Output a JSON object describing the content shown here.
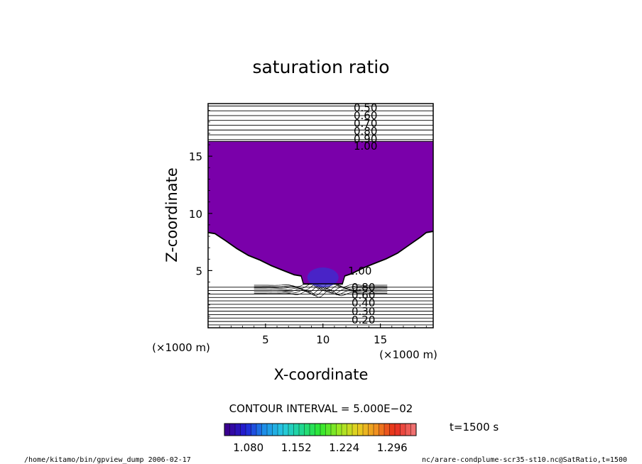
{
  "chart_data": {
    "type": "contour",
    "title": "saturation ratio",
    "xlabel": "X-coordinate",
    "ylabel": "Z-coordinate",
    "x_unit": "(×1000 m)",
    "z_unit": "(×1000 m)",
    "xlim": [
      0,
      19.6
    ],
    "ylim": [
      0,
      19.6
    ],
    "x_ticks": [
      5,
      10,
      15
    ],
    "y_ticks": [
      5,
      10,
      15
    ],
    "fill_threshold": 1.0,
    "fill_color": "#7a00aa",
    "core_color": "#3a2fd0",
    "upper_contour_labels": [
      "0.50",
      "0.60",
      "0.70",
      "0.80",
      "0.90",
      "1.00"
    ],
    "lower_contour_labels": [
      "1.00",
      "0.80",
      "0.60",
      "0.40",
      "0.30",
      "0.20"
    ],
    "plume_boundary": [
      [
        0.0,
        8.3
      ],
      [
        0.6,
        8.2
      ],
      [
        1.5,
        7.6
      ],
      [
        2.5,
        6.9
      ],
      [
        3.5,
        6.3
      ],
      [
        4.5,
        5.9
      ],
      [
        5.5,
        5.4
      ],
      [
        6.5,
        5.0
      ],
      [
        7.5,
        4.6
      ],
      [
        8.1,
        4.5
      ],
      [
        8.3,
        3.8
      ],
      [
        11.7,
        3.8
      ],
      [
        11.9,
        4.5
      ],
      [
        12.5,
        4.7
      ],
      [
        13.5,
        5.2
      ],
      [
        14.5,
        5.6
      ],
      [
        15.5,
        6.0
      ],
      [
        16.5,
        6.5
      ],
      [
        17.5,
        7.2
      ],
      [
        18.5,
        7.9
      ],
      [
        19.0,
        8.3
      ],
      [
        19.6,
        8.4
      ]
    ],
    "plume_top": 16.3,
    "contour_interval_text": "CONTOUR INTERVAL = 5.000E−02",
    "colorbar_ticks": [
      "1.080",
      "1.152",
      "1.224",
      "1.296"
    ],
    "colorbar_range": [
      1.044,
      1.332
    ],
    "colorbar_colors": [
      "#3a0090",
      "#1f1fd6",
      "#1e8ee8",
      "#25c8e0",
      "#20d890",
      "#2ee82e",
      "#9ae824",
      "#e8d020",
      "#f09020",
      "#e82a1a",
      "#f07070"
    ]
  },
  "annotations": {
    "time": "t=1500 s",
    "footer_left": "/home/kitamo/bin/gpview_dump  2006-02-17",
    "footer_right": "nc/arare-condplume-scr35-st10.nc@SatRatio,t=1500"
  }
}
